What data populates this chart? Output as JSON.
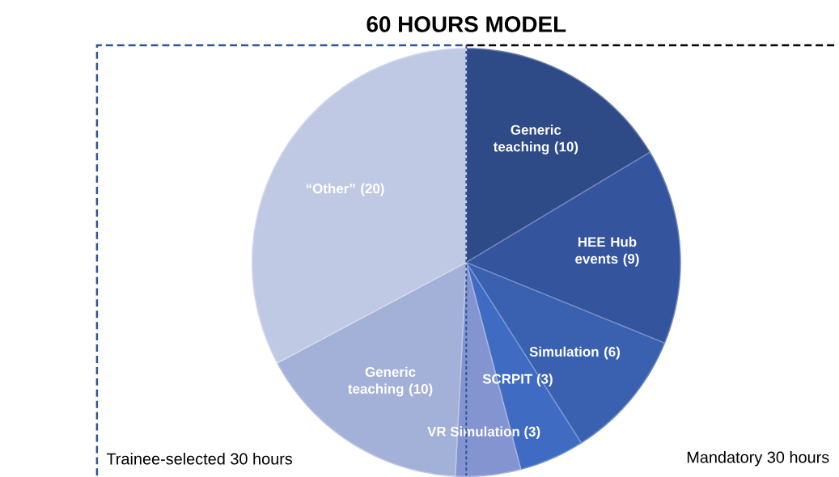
{
  "chart_data": {
    "type": "pie",
    "title": "60 HOURS MODEL",
    "categories": [
      "Generic teaching",
      "HEE Hub events",
      "Simulation",
      "SCRPIT",
      "VR Simulation",
      "Generic teaching",
      "“Other”"
    ],
    "values": [
      10,
      9,
      6,
      3,
      3,
      10,
      20
    ],
    "value_labels": [
      "(10)",
      "(9)",
      "(6)",
      "(3)",
      "(3)",
      "(10)",
      "(20)"
    ],
    "colors": [
      "#2e4a87",
      "#34549e",
      "#3a61b0",
      "#3f6bc2",
      "#8394d0",
      "#a3b0d8",
      "#c0c9e4"
    ],
    "annotations": [
      "Trainee-selected 30 hours",
      "Mandatory 30 hours"
    ]
  }
}
